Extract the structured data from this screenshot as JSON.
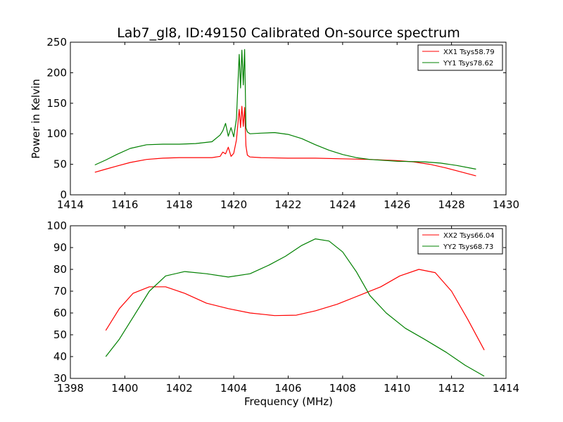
{
  "chart_data": [
    {
      "type": "line",
      "title": "Lab7_gl8, ID:49150 Calibrated On-source spectrum",
      "ylabel": "Power in Kelvin",
      "xlabel": "",
      "xlim": [
        1414,
        1430
      ],
      "ylim": [
        0,
        250
      ],
      "xticks": [
        "1414",
        "1416",
        "1418",
        "1420",
        "1422",
        "1424",
        "1426",
        "1428",
        "1430"
      ],
      "yticks": [
        "0",
        "50",
        "100",
        "150",
        "200",
        "250"
      ],
      "legend_position": "top-right",
      "grid": false,
      "series": [
        {
          "name": "XX1 Tsys58.79",
          "color": "#ff0000",
          "x": [
            1414.9,
            1415.3,
            1415.7,
            1416.2,
            1416.8,
            1417.4,
            1418.0,
            1418.6,
            1419.2,
            1419.5,
            1419.6,
            1419.7,
            1419.8,
            1419.9,
            1420.0,
            1420.1,
            1420.2,
            1420.25,
            1420.3,
            1420.35,
            1420.4,
            1420.45,
            1420.5,
            1420.6,
            1421.0,
            1422.0,
            1423.0,
            1424.0,
            1425.0,
            1426.0,
            1426.6,
            1427.2,
            1427.8,
            1428.4,
            1428.9
          ],
          "values": [
            37,
            42,
            47,
            53,
            58,
            60,
            61,
            61,
            61,
            63,
            70,
            67,
            78,
            63,
            68,
            90,
            140,
            110,
            145,
            112,
            143,
            80,
            65,
            62,
            61,
            60,
            60,
            59,
            58,
            56,
            54,
            50,
            44,
            37,
            31
          ]
        },
        {
          "name": "YY1 Tsys78.62",
          "color": "#008000",
          "x": [
            1414.9,
            1415.3,
            1415.7,
            1416.2,
            1416.8,
            1417.4,
            1418.0,
            1418.6,
            1419.2,
            1419.5,
            1419.6,
            1419.7,
            1419.8,
            1419.9,
            1420.0,
            1420.1,
            1420.2,
            1420.25,
            1420.3,
            1420.35,
            1420.4,
            1420.45,
            1420.5,
            1420.6,
            1421.0,
            1421.5,
            1422.0,
            1422.5,
            1423.0,
            1423.5,
            1424.0,
            1424.5,
            1425.0,
            1426.0,
            1427.0,
            1427.6,
            1428.2,
            1428.9
          ],
          "values": [
            49,
            57,
            66,
            76,
            82,
            83,
            83,
            84,
            87,
            98,
            105,
            117,
            96,
            110,
            95,
            125,
            230,
            175,
            237,
            180,
            238,
            110,
            103,
            100,
            101,
            102,
            99,
            92,
            82,
            73,
            66,
            61,
            58,
            55,
            54,
            52,
            48,
            42
          ]
        }
      ]
    },
    {
      "type": "line",
      "title": "",
      "ylabel": "",
      "xlabel": "Frequency (MHz)",
      "xlim": [
        1398,
        1414
      ],
      "ylim": [
        30,
        100
      ],
      "xticks": [
        "1398",
        "1400",
        "1402",
        "1404",
        "1406",
        "1408",
        "1410",
        "1412",
        "1414"
      ],
      "yticks": [
        "30",
        "40",
        "50",
        "60",
        "70",
        "80",
        "90",
        "100"
      ],
      "legend_position": "top-right",
      "grid": false,
      "series": [
        {
          "name": "XX2 Tsys66.04",
          "color": "#ff0000",
          "x": [
            1399.3,
            1399.8,
            1400.3,
            1400.9,
            1401.5,
            1402.2,
            1403.0,
            1403.8,
            1404.6,
            1405.5,
            1406.3,
            1407.0,
            1407.8,
            1408.6,
            1409.4,
            1410.1,
            1410.8,
            1411.4,
            1412.0,
            1412.6,
            1413.2
          ],
          "values": [
            52,
            62,
            69,
            72,
            72,
            69,
            64.5,
            62,
            60,
            58.8,
            59,
            61,
            64,
            68,
            72,
            77,
            80,
            78.5,
            70,
            57,
            43
          ]
        },
        {
          "name": "YY2 Tsys68.73",
          "color": "#008000",
          "x": [
            1399.3,
            1399.8,
            1400.3,
            1400.9,
            1401.5,
            1402.2,
            1403.0,
            1403.8,
            1404.6,
            1405.3,
            1405.9,
            1406.5,
            1407.0,
            1407.5,
            1408.0,
            1408.5,
            1409.0,
            1409.6,
            1410.3,
            1411.0,
            1411.8,
            1412.5,
            1413.2
          ],
          "values": [
            40,
            48,
            58,
            70,
            77,
            79,
            78,
            76.5,
            78,
            82,
            86,
            91,
            94,
            93,
            88,
            79,
            68,
            60,
            53,
            48,
            42,
            36,
            31
          ]
        }
      ]
    }
  ]
}
